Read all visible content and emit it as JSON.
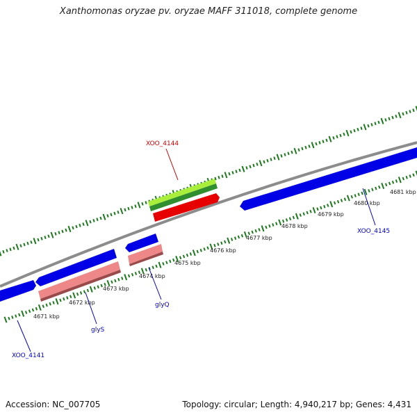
{
  "title": "Xanthomonas oryzae pv. oryzae MAFF 311018, complete genome",
  "footer": {
    "accession": "Accession: NC_007705",
    "summary": "Topology: circular; Length: 4,940,217 bp; Genes: 4,431"
  },
  "scale": {
    "ticks": [
      "4671 kbp",
      "4672 kbp",
      "4673 kbp",
      "4674 kbp",
      "4675 kbp",
      "4676 kbp",
      "4677 kbp",
      "4678 kbp",
      "4679 kbp",
      "4680 kbp",
      "4681 kbp"
    ]
  },
  "genes": [
    {
      "id": "XOO_4141",
      "color": "#0000cc"
    },
    {
      "id": "glyS",
      "color": "#0000cc"
    },
    {
      "id": "glyQ",
      "color": "#0000cc"
    },
    {
      "id": "XOO_4144",
      "color": "#cc0000"
    },
    {
      "id": "XOO_4145",
      "color": "#0000cc"
    }
  ],
  "colors": {
    "backbone": "#8c8c8c",
    "cds_forward": "#0000e6",
    "cds_reverse": "#e60000",
    "rna": "#ee8888",
    "gene_dark_green": "#2f8f2f",
    "gene_light_green": "#a8ee3a",
    "ticks": "#1a7a1a"
  }
}
